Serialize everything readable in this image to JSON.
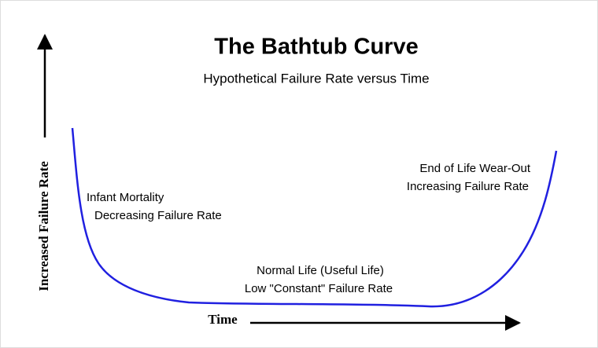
{
  "header": {
    "title": "The Bathtub Curve",
    "subtitle": "Hypothetical Failure Rate versus Time"
  },
  "axes": {
    "y_label": "Increased Failure Rate",
    "x_label": "Time"
  },
  "regions": [
    {
      "lines": [
        "Infant Mortality",
        "Decreasing Failure Rate"
      ]
    },
    {
      "lines": [
        "Normal Life (Useful Life)",
        "Low \"Constant\" Failure Rate"
      ]
    },
    {
      "lines": [
        "End of Life Wear-Out",
        "Increasing Failure Rate"
      ]
    }
  ]
}
